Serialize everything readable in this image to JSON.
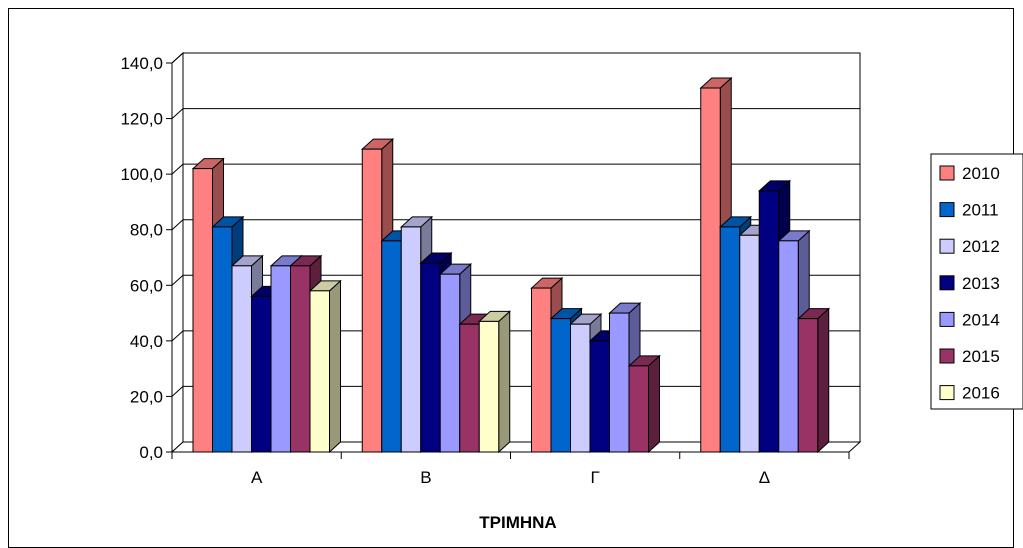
{
  "chart_data": {
    "type": "bar",
    "title": "",
    "xlabel": "ΤΡΙΜΗΝΑ",
    "ylabel": "",
    "categories": [
      "Α",
      "Β",
      "Γ",
      "Δ"
    ],
    "ylim": [
      0,
      140
    ],
    "yticks": [
      "0,0",
      "20,0",
      "40,0",
      "60,0",
      "80,0",
      "100,0",
      "120,0",
      "140,0"
    ],
    "grid": true,
    "legend_position": "right",
    "series": [
      {
        "name": "2010",
        "color": "#ff8080",
        "values": [
          102,
          109,
          59,
          131
        ]
      },
      {
        "name": "2011",
        "color": "#0066cc",
        "values": [
          81,
          76,
          48,
          81
        ]
      },
      {
        "name": "2012",
        "color": "#ccccff",
        "values": [
          67,
          81,
          46,
          78
        ]
      },
      {
        "name": "2013",
        "color": "#000080",
        "values": [
          56,
          68,
          40,
          94
        ]
      },
      {
        "name": "2014",
        "color": "#9999ff",
        "values": [
          67,
          64,
          50,
          76
        ]
      },
      {
        "name": "2015",
        "color": "#993366",
        "values": [
          67,
          46,
          31,
          48
        ]
      },
      {
        "name": "2016",
        "color": "#ffffcc",
        "values": [
          58,
          47,
          null,
          null
        ]
      }
    ]
  }
}
